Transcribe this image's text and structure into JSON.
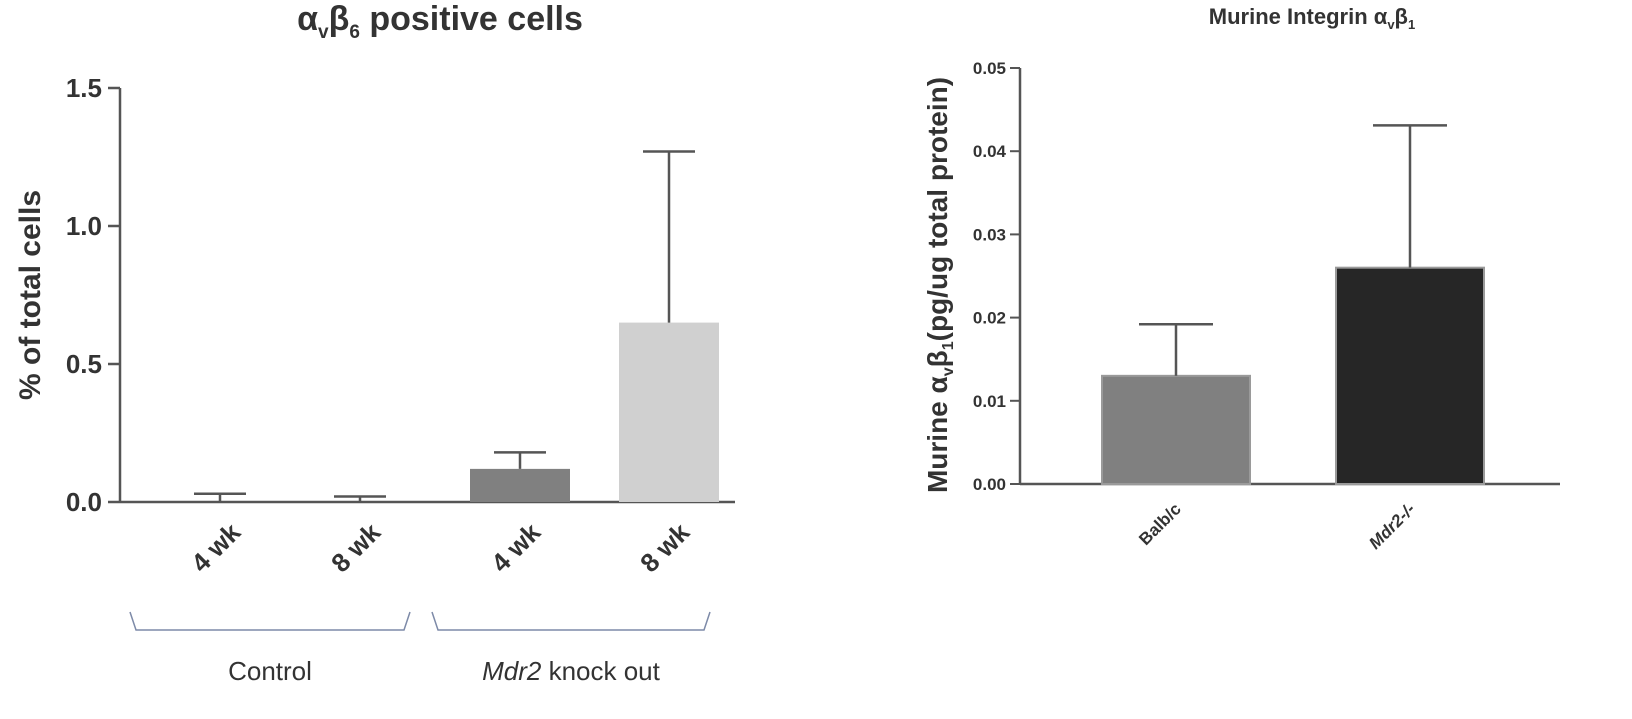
{
  "chart_data": [
    {
      "type": "bar",
      "title": "αvβ6 positive cells",
      "title_main": "α",
      "title_sub1": "v",
      "title_mid": "β",
      "title_sub2": "6",
      "title_tail": " positive cells",
      "ylabel": "% of total cells",
      "ylim": [
        0,
        1.5
      ],
      "yticks": [
        "0.0",
        "0.5",
        "1.0",
        "1.5"
      ],
      "ytick_values": [
        0,
        0.5,
        1.0,
        1.5
      ],
      "categories": [
        "4 wk",
        "8 wk",
        "4 wk",
        "8 wk"
      ],
      "values": [
        0.0,
        0.0,
        0.12,
        0.65
      ],
      "error_upper": [
        0.03,
        0.02,
        0.18,
        1.27
      ],
      "bar_colors": [
        "#777777",
        "#777777",
        "#808080",
        "#d0d0d0"
      ],
      "groups": [
        {
          "label": "Control",
          "italic_part": "",
          "rest": "Control",
          "members": [
            0,
            1
          ]
        },
        {
          "label": "Mdr2 knock out",
          "italic_part": "Mdr2",
          "rest": " knock out",
          "members": [
            2,
            3
          ]
        }
      ],
      "grid": false,
      "legend": "none"
    },
    {
      "type": "bar",
      "title": "Murine Integrin αvβ1",
      "title_main": "Murine Integrin α",
      "title_sub1": "v",
      "title_mid": "β",
      "title_sub2": "1",
      "title_tail": "",
      "ylabel": "Murine αvβ1(pg/ug total protein)",
      "ylabel_pre": "Murine α",
      "ylabel_sub1": "v",
      "ylabel_mid": "β",
      "ylabel_sub2": "1",
      "ylabel_tail": "(pg/ug total protein)",
      "ylim": [
        0,
        0.05
      ],
      "yticks": [
        "0.00",
        "0.01",
        "0.02",
        "0.03",
        "0.04",
        "0.05"
      ],
      "ytick_values": [
        0,
        0.01,
        0.02,
        0.03,
        0.04,
        0.05
      ],
      "categories": [
        "Balb/c",
        "Mdr2-/-"
      ],
      "category_italic": [
        false,
        true
      ],
      "values": [
        0.013,
        0.026
      ],
      "error_upper": [
        0.0192,
        0.0431
      ],
      "bar_colors": [
        "#808080",
        "#262626"
      ],
      "grid": false,
      "legend": "none"
    }
  ]
}
